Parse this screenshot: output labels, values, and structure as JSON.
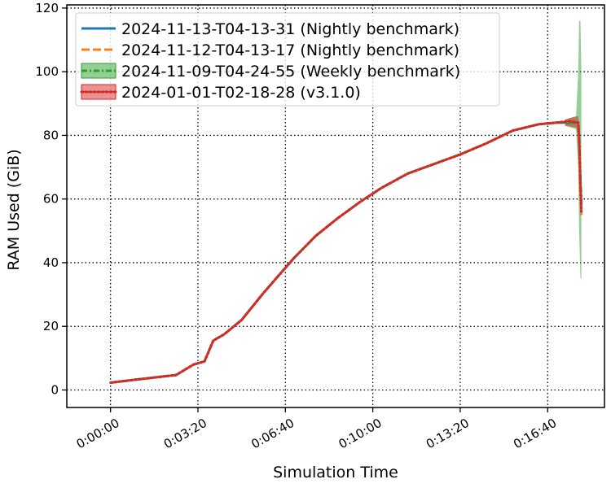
{
  "chart_data": {
    "type": "line",
    "xlabel": "Simulation Time",
    "ylabel": "RAM Used (GiB)",
    "x_unit": "seconds",
    "xlim": [
      -100,
      1130
    ],
    "ylim": [
      -5.5,
      121
    ],
    "x_ticks": [
      {
        "value": 0,
        "label": "0:00:00"
      },
      {
        "value": 200,
        "label": "0:03:20"
      },
      {
        "value": 400,
        "label": "0:06:40"
      },
      {
        "value": 600,
        "label": "0:10:00"
      },
      {
        "value": 800,
        "label": "0:13:20"
      },
      {
        "value": 1000,
        "label": "0:16:40"
      }
    ],
    "y_ticks": [
      0,
      20,
      40,
      60,
      80,
      100,
      120
    ],
    "grid": true,
    "legend_position": "top-left",
    "x": [
      0,
      60,
      150,
      190,
      215,
      235,
      260,
      300,
      350,
      385,
      420,
      470,
      520,
      570,
      620,
      680,
      740,
      800,
      860,
      920,
      980,
      1020,
      1050,
      1070,
      1072,
      1075,
      1077
    ],
    "series": [
      {
        "name": "2024-11-13-T04-13-31 (Nightly benchmark)",
        "color": "#1f77b4",
        "dash": "solid",
        "values": [
          2.3,
          3.3,
          4.7,
          8.0,
          9.0,
          15.5,
          17.5,
          22.0,
          30.5,
          36.0,
          41.5,
          48.5,
          54.0,
          59.0,
          63.5,
          68.0,
          71.0,
          74.0,
          77.5,
          81.5,
          83.5,
          84.0,
          84.0,
          84.0,
          78.0,
          65.0,
          58.0
        ],
        "band": null
      },
      {
        "name": "2024-11-12-T04-13-17 (Nightly benchmark)",
        "color": "#ff7f0e",
        "dash": "dashed",
        "values": [
          2.3,
          3.3,
          4.7,
          8.0,
          9.0,
          15.5,
          17.5,
          22.0,
          30.5,
          36.0,
          41.5,
          48.5,
          54.0,
          59.0,
          63.5,
          68.0,
          71.0,
          74.0,
          77.5,
          81.5,
          83.5,
          84.0,
          84.5,
          84.0,
          76.0,
          62.0,
          55.0
        ],
        "band": null
      },
      {
        "name": "2024-11-09-T04-24-55 (Weekly benchmark)",
        "color": "#2ca02c",
        "dash": "dashdot",
        "values": [
          2.3,
          3.3,
          4.7,
          8.0,
          9.0,
          15.5,
          17.5,
          22.0,
          30.5,
          36.0,
          41.5,
          48.5,
          54.0,
          59.0,
          63.5,
          68.0,
          71.0,
          74.0,
          77.5,
          81.5,
          83.5,
          84.0,
          84.0,
          84.0,
          80.0,
          66.0,
          60.0
        ],
        "band": {
          "x": [
            1040,
            1065,
            1070,
            1072,
            1075,
            1077
          ],
          "low": [
            83.0,
            82.0,
            70.0,
            50.0,
            35.0,
            35.0
          ],
          "high": [
            85.0,
            86.0,
            100.0,
            116.0,
            116.0,
            100.0
          ]
        }
      },
      {
        "name": "2024-01-01-T02-18-28 (v3.1.0)",
        "color": "#d62728",
        "dash": "dotted",
        "values": [
          2.3,
          3.3,
          4.7,
          8.0,
          9.0,
          15.5,
          17.5,
          22.0,
          30.5,
          36.0,
          41.5,
          48.5,
          54.0,
          59.0,
          63.5,
          68.0,
          71.0,
          74.0,
          77.5,
          81.5,
          83.5,
          84.0,
          84.5,
          84.0,
          79.0,
          64.0,
          56.0
        ],
        "band": {
          "x": [
            1040,
            1065,
            1070,
            1072,
            1075,
            1077
          ],
          "low": [
            83.0,
            82.5,
            80.0,
            70.0,
            58.0,
            54.0
          ],
          "high": [
            85.0,
            86.0,
            86.0,
            84.0,
            70.0,
            60.0
          ]
        }
      }
    ]
  }
}
